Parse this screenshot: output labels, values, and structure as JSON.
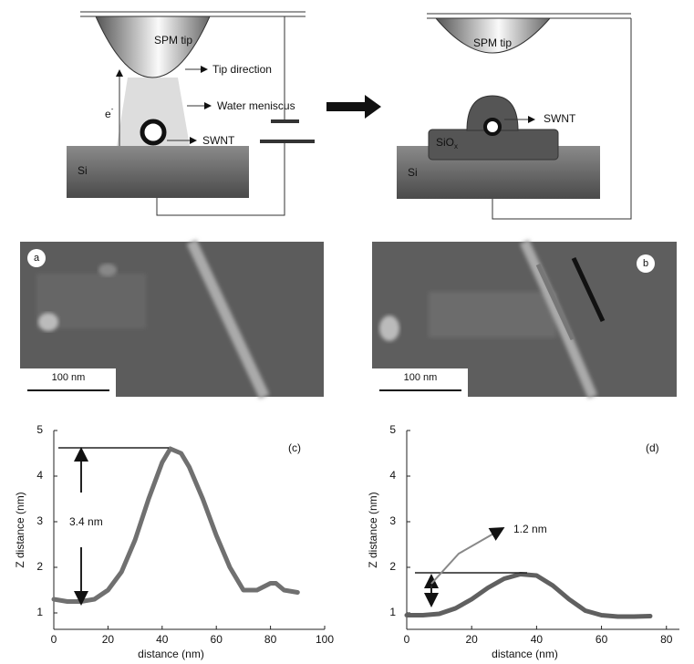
{
  "diagram": {
    "left": {
      "tip": "SPM tip",
      "tip_direction": "Tip direction",
      "meniscus": "Water meniscus",
      "electron": "e",
      "electron_sup": "-",
      "swnt": "SWNT",
      "substrate": "Si"
    },
    "right": {
      "tip": "SPM tip",
      "swnt": "SWNT",
      "oxide": "SiO",
      "oxide_sub": "x",
      "substrate": "Si"
    }
  },
  "images": [
    {
      "label": "a",
      "scale_bar": "100 nm"
    },
    {
      "label": "b",
      "scale_bar": "100 nm"
    }
  ],
  "chart_data": [
    {
      "type": "line",
      "panel_label": "(c)",
      "annotation": "3.4 nm",
      "xlabel": "distance (nm)",
      "ylabel": "Z distance (nm)",
      "x": [
        0,
        5,
        10,
        15,
        20,
        25,
        30,
        35,
        40,
        43,
        47,
        50,
        55,
        60,
        65,
        70,
        75,
        80,
        82,
        85,
        90
      ],
      "series": [
        {
          "color": "#707070",
          "values": [
            1.3,
            1.25,
            1.25,
            1.3,
            1.5,
            1.9,
            2.6,
            3.5,
            4.3,
            4.6,
            4.5,
            4.2,
            3.5,
            2.7,
            2.0,
            1.5,
            1.5,
            1.65,
            1.65,
            1.5,
            1.45
          ]
        }
      ],
      "xlim": [
        0,
        100
      ],
      "ylim": [
        0.64,
        5
      ],
      "xticks": [
        0,
        20,
        40,
        60,
        80,
        100
      ],
      "yticks": [
        1,
        2,
        3,
        4,
        5
      ]
    },
    {
      "type": "line",
      "panel_label": "(d)",
      "annotation": "1.2 nm",
      "xlabel": "distance (nm)",
      "ylabel": "Z distance (nm)",
      "x": [
        0,
        5,
        10,
        15,
        20,
        25,
        30,
        35,
        40,
        45,
        50,
        55,
        60,
        65,
        70,
        75
      ],
      "series": [
        {
          "color": "#606060",
          "values": [
            0.95,
            0.95,
            0.98,
            1.1,
            1.3,
            1.55,
            1.75,
            1.85,
            1.82,
            1.6,
            1.3,
            1.05,
            0.95,
            0.92,
            0.92,
            0.93
          ]
        }
      ],
      "xlim": [
        0,
        84
      ],
      "ylim": [
        0.64,
        5
      ],
      "xticks": [
        0,
        20,
        40,
        60,
        80
      ],
      "yticks": [
        1,
        2,
        3,
        4,
        5
      ]
    }
  ]
}
